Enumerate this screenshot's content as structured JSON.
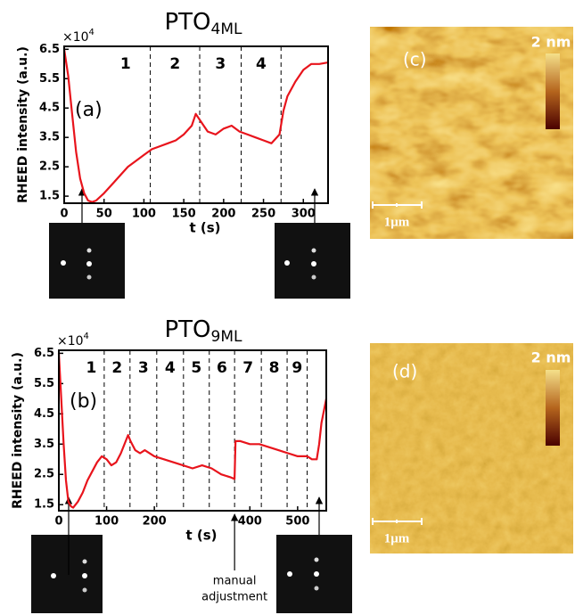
{
  "chart_data": [
    {
      "type": "line",
      "title": "PTO",
      "title_sub": "4ML",
      "panel": "(a)",
      "ylabel": "RHEED intensity (a.u.)",
      "xlabel": "t (s)",
      "y_multiplier": "×10",
      "y_multiplier_exp": "4",
      "color": "#e8141c",
      "x": [
        0,
        5,
        10,
        15,
        20,
        25,
        30,
        35,
        40,
        50,
        60,
        70,
        80,
        90,
        100,
        110,
        120,
        130,
        140,
        150,
        160,
        165,
        170,
        180,
        190,
        200,
        210,
        220,
        230,
        240,
        250,
        260,
        270,
        275,
        280,
        290,
        300,
        310,
        320,
        331
      ],
      "values": [
        6.5,
        5.6,
        4.3,
        3.0,
        2.1,
        1.6,
        1.35,
        1.3,
        1.35,
        1.6,
        1.9,
        2.2,
        2.5,
        2.7,
        2.9,
        3.1,
        3.2,
        3.3,
        3.4,
        3.6,
        3.9,
        4.3,
        4.1,
        3.7,
        3.6,
        3.8,
        3.9,
        3.7,
        3.6,
        3.5,
        3.4,
        3.3,
        3.6,
        4.4,
        4.9,
        5.4,
        5.8,
        6.0,
        6.0,
        6.05
      ],
      "phase_labels": [
        "1",
        "2",
        "3",
        "4"
      ],
      "phase_boundaries": [
        108,
        170,
        222,
        272
      ],
      "xlim": [
        0,
        331
      ],
      "ylim": [
        1.26,
        6.6
      ],
      "xticks": [
        0,
        50,
        100,
        150,
        200,
        250,
        300
      ],
      "yticks": [
        1.5,
        2.5,
        3.5,
        4.5,
        5.5,
        6.5
      ]
    },
    {
      "type": "line",
      "title": "PTO",
      "title_sub": "9ML",
      "panel": "(b)",
      "ylabel": "RHEED intensity (a.u.)",
      "xlabel": "t (s)",
      "y_multiplier": "×10",
      "y_multiplier_exp": "4",
      "color": "#e8141c",
      "x": [
        0,
        5,
        10,
        15,
        20,
        25,
        30,
        40,
        50,
        60,
        70,
        80,
        90,
        100,
        110,
        120,
        130,
        140,
        145,
        150,
        160,
        170,
        180,
        200,
        220,
        240,
        260,
        280,
        300,
        320,
        340,
        360,
        368,
        370,
        380,
        400,
        420,
        440,
        460,
        480,
        500,
        520,
        530,
        540,
        545,
        550,
        560
      ],
      "values": [
        6.5,
        5.0,
        3.5,
        2.3,
        1.6,
        1.45,
        1.4,
        1.6,
        1.9,
        2.3,
        2.6,
        2.9,
        3.1,
        3.0,
        2.8,
        2.9,
        3.2,
        3.6,
        3.8,
        3.6,
        3.3,
        3.2,
        3.3,
        3.1,
        3.0,
        2.9,
        2.8,
        2.7,
        2.8,
        2.7,
        2.5,
        2.4,
        2.35,
        3.6,
        3.6,
        3.5,
        3.5,
        3.4,
        3.3,
        3.2,
        3.1,
        3.1,
        3.0,
        3.0,
        3.5,
        4.2,
        5.0
      ],
      "phase_labels": [
        "1",
        "2",
        "3",
        "4",
        "5",
        "6",
        "7",
        "8",
        "9"
      ],
      "phase_boundaries": [
        95,
        149,
        205,
        261,
        315,
        368,
        424,
        478,
        520
      ],
      "annotation": [
        "manual",
        "adjustment"
      ],
      "xlim": [
        0,
        560
      ],
      "ylim": [
        1.3,
        6.6
      ],
      "xticks": [
        0,
        100,
        200,
        400,
        500
      ],
      "yticks": [
        1.5,
        2.5,
        3.5,
        4.5,
        5.5,
        6.5
      ]
    }
  ],
  "afm": [
    {
      "label": "(c)",
      "scale_max": "2 nm",
      "scale_bar": "1μm"
    },
    {
      "label": "(d)",
      "scale_max": "2 nm",
      "scale_bar": "1μm"
    }
  ]
}
